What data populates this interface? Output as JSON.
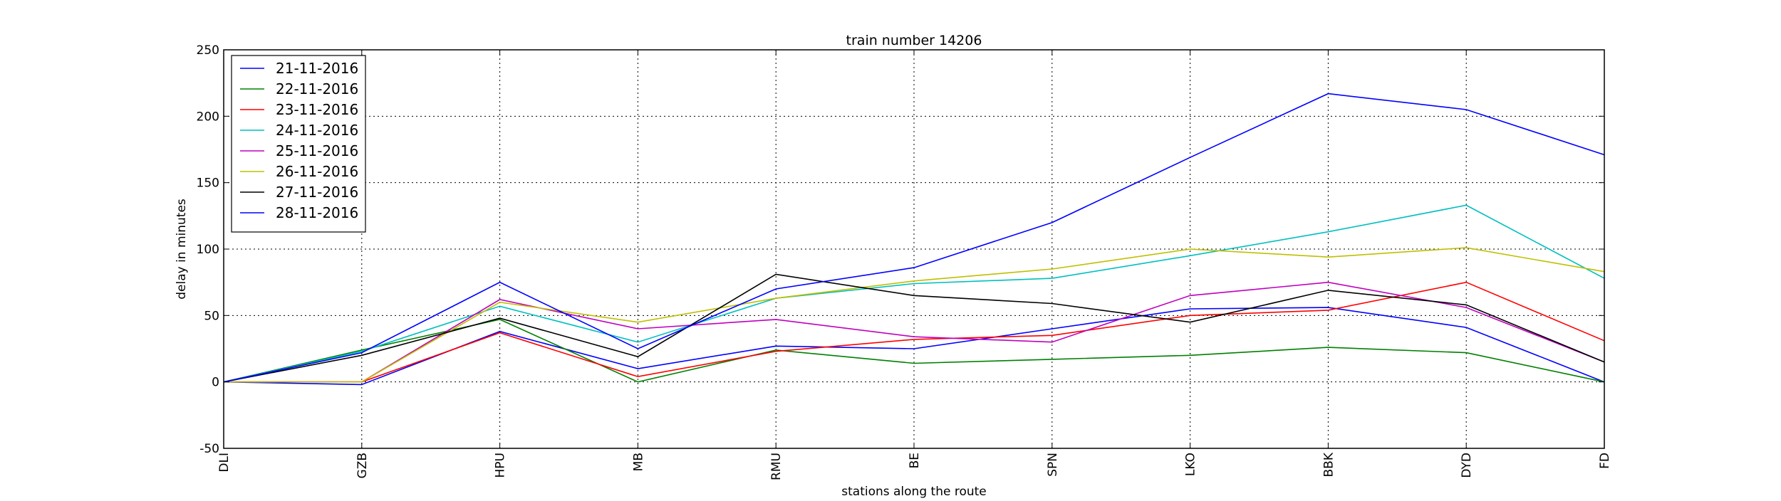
{
  "chart_data": {
    "type": "line",
    "title": "train number 14206",
    "xlabel": "stations along the route",
    "ylabel": "delay in minutes",
    "categories": [
      "DLI",
      "GZB",
      "HPU",
      "MB",
      "RMU",
      "BE",
      "SPN",
      "LKO",
      "BBK",
      "DYD",
      "FD"
    ],
    "ylim": [
      -50,
      250
    ],
    "yticks": [
      -50,
      0,
      50,
      100,
      150,
      200,
      250
    ],
    "grid": true,
    "legend_position": "top-left",
    "series": [
      {
        "name": "21-11-2016",
        "color": "#0000ff",
        "values": [
          0,
          -2,
          38,
          10,
          27,
          25,
          40,
          55,
          56,
          41,
          0
        ]
      },
      {
        "name": "22-11-2016",
        "color": "#008000",
        "values": [
          0,
          24,
          47,
          0,
          24,
          14,
          17,
          20,
          26,
          22,
          0
        ]
      },
      {
        "name": "23-11-2016",
        "color": "#ff0000",
        "values": [
          0,
          0,
          37,
          4,
          23,
          32,
          35,
          50,
          54,
          75,
          31
        ]
      },
      {
        "name": "24-11-2016",
        "color": "#00bfbf",
        "values": [
          0,
          23,
          57,
          30,
          63,
          74,
          78,
          95,
          113,
          133,
          78
        ]
      },
      {
        "name": "25-11-2016",
        "color": "#bf00bf",
        "values": [
          0,
          0,
          62,
          40,
          47,
          34,
          30,
          65,
          75,
          56,
          15
        ]
      },
      {
        "name": "26-11-2016",
        "color": "#bfbf00",
        "values": [
          0,
          0,
          60,
          45,
          63,
          76,
          85,
          100,
          94,
          101,
          83
        ]
      },
      {
        "name": "27-11-2016",
        "color": "#000000",
        "values": [
          0,
          20,
          48,
          19,
          81,
          65,
          59,
          45,
          69,
          58,
          15
        ]
      },
      {
        "name": "28-11-2016",
        "color": "#0000ff",
        "values": [
          0,
          22,
          75,
          25,
          70,
          86,
          120,
          169,
          217,
          205,
          171
        ]
      }
    ]
  }
}
